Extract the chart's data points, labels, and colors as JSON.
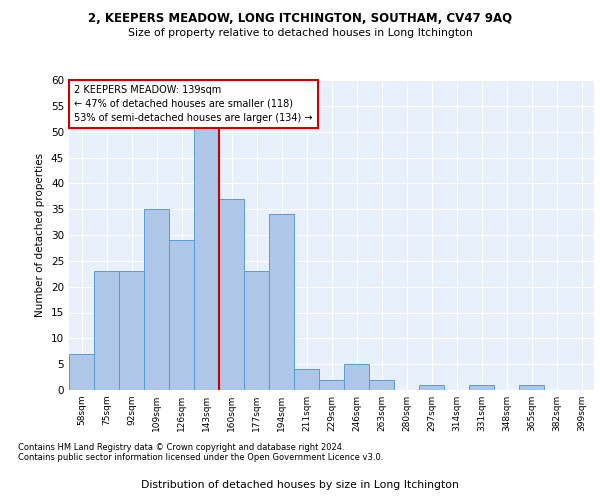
{
  "title1": "2, KEEPERS MEADOW, LONG ITCHINGTON, SOUTHAM, CV47 9AQ",
  "title2": "Size of property relative to detached houses in Long Itchington",
  "xlabel": "Distribution of detached houses by size in Long Itchington",
  "ylabel": "Number of detached properties",
  "categories": [
    "58sqm",
    "75sqm",
    "92sqm",
    "109sqm",
    "126sqm",
    "143sqm",
    "160sqm",
    "177sqm",
    "194sqm",
    "211sqm",
    "229sqm",
    "246sqm",
    "263sqm",
    "280sqm",
    "297sqm",
    "314sqm",
    "331sqm",
    "348sqm",
    "365sqm",
    "382sqm",
    "399sqm"
  ],
  "values": [
    7,
    23,
    23,
    35,
    29,
    51,
    37,
    23,
    34,
    4,
    2,
    5,
    2,
    0,
    1,
    0,
    1,
    0,
    1,
    0,
    0
  ],
  "bar_color": "#aec6e8",
  "bar_edge_color": "#5b9bd5",
  "reference_line_index": 5,
  "reference_line_color": "#cc0000",
  "annotation_line1": "2 KEEPERS MEADOW: 139sqm",
  "annotation_line2": "← 47% of detached houses are smaller (118)",
  "annotation_line3": "53% of semi-detached houses are larger (134) →",
  "annotation_box_color": "#cc0000",
  "ylim": [
    0,
    60
  ],
  "yticks": [
    0,
    5,
    10,
    15,
    20,
    25,
    30,
    35,
    40,
    45,
    50,
    55,
    60
  ],
  "footnote1": "Contains HM Land Registry data © Crown copyright and database right 2024.",
  "footnote2": "Contains public sector information licensed under the Open Government Licence v3.0.",
  "bg_color": "#e8f0fb",
  "fig_bg_color": "#ffffff"
}
